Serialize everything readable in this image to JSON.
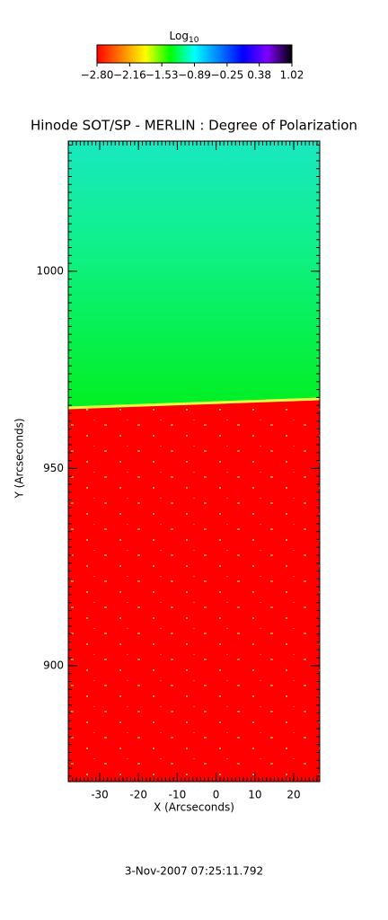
{
  "chart_data": {
    "type": "heatmap",
    "title": "Hinode SOT/SP - MERLIN : Degree of Polarization",
    "x_label": "X (Arcseconds)",
    "y_label": "Y (Arcseconds)",
    "xlim": [
      -38.1,
      26.7
    ],
    "xticks": [
      -30,
      -20,
      -10,
      0,
      10,
      20
    ],
    "x_minor_step": 1,
    "ylim": [
      870.6,
      1033
    ],
    "yticks": [
      900,
      950,
      1000
    ],
    "y_minor_step": 2,
    "colorbar_label": "Log",
    "colorbar_label_sub": "10",
    "colorbar_lim": [
      -2.8,
      1.02
    ],
    "colorbar_ticks": [
      {
        "value": -2.8,
        "label": "−2.80"
      },
      {
        "value": -2.16,
        "label": "−2.16"
      },
      {
        "value": -1.53,
        "label": "−1.53"
      },
      {
        "value": -0.89,
        "label": "−0.89"
      },
      {
        "value": -0.25,
        "label": "−0.25"
      },
      {
        "value": 0.38,
        "label": "0.38"
      },
      {
        "value": 1.02,
        "label": "1.02"
      }
    ],
    "colormap": [
      "#ff0000",
      "#ff8000",
      "#ffff00",
      "#00ff00",
      "#00ffff",
      "#0080ff",
      "#0000ff",
      "#8000ff",
      "#000000"
    ],
    "footer": "3-Nov-2007 07:25:11.792"
  }
}
